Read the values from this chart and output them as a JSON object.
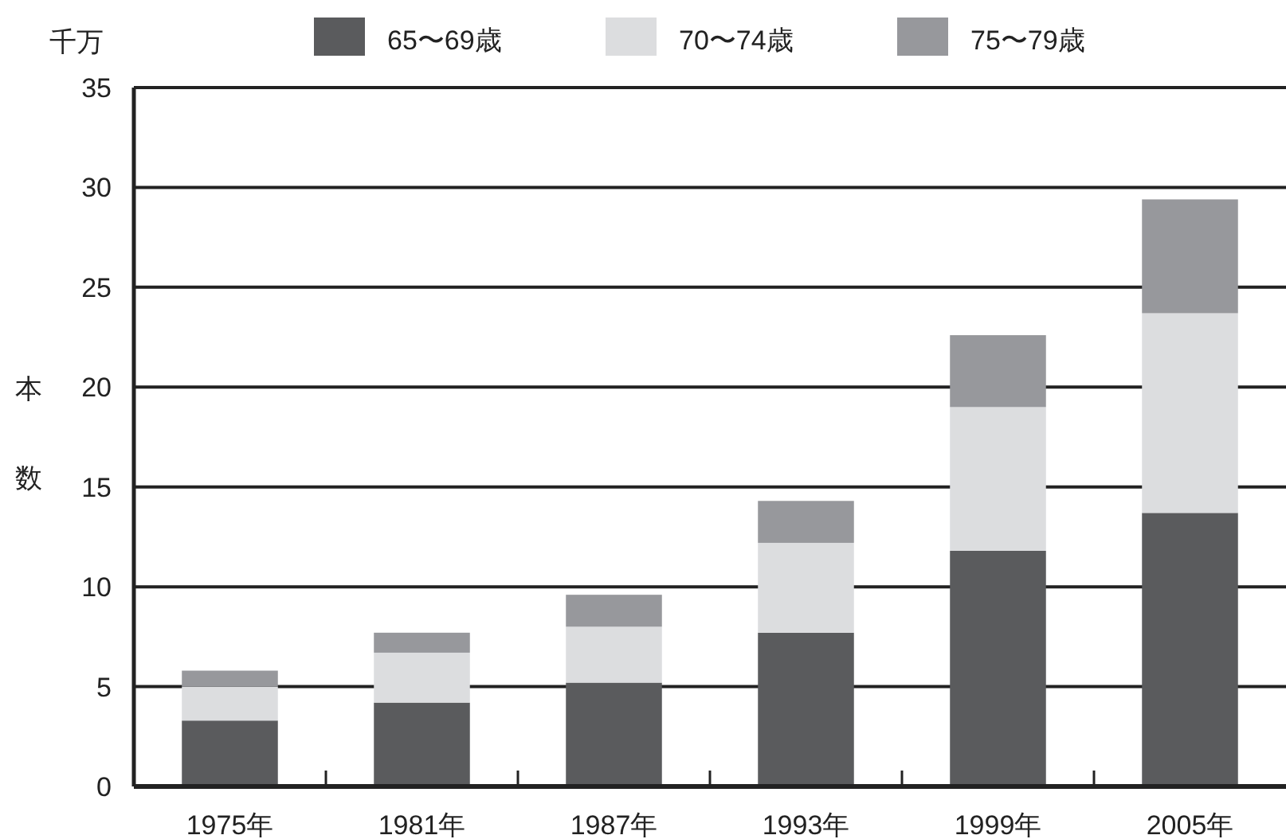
{
  "chart_data": {
    "type": "bar",
    "stacked": true,
    "ylabel": "本数",
    "annotations": [
      "千万"
    ],
    "categories": [
      "1975年",
      "1981年",
      "1987年",
      "1993年",
      "1999年",
      "2005年"
    ],
    "series": [
      {
        "name": "65〜69歳",
        "color": "#5a5b5d",
        "values": [
          3.3,
          4.2,
          5.2,
          7.7,
          11.8,
          13.7
        ]
      },
      {
        "name": "70〜74歳",
        "color": "#dcdddf",
        "values": [
          1.7,
          2.5,
          2.8,
          4.5,
          7.2,
          10.0
        ]
      },
      {
        "name": "75〜79歳",
        "color": "#97989c",
        "values": [
          0.8,
          1.0,
          1.6,
          2.1,
          3.6,
          5.7
        ]
      }
    ],
    "ylim": [
      0,
      35
    ],
    "yticks": [
      0,
      5,
      10,
      15,
      20,
      25,
      30,
      35
    ],
    "grid": "y",
    "legend": "top"
  }
}
